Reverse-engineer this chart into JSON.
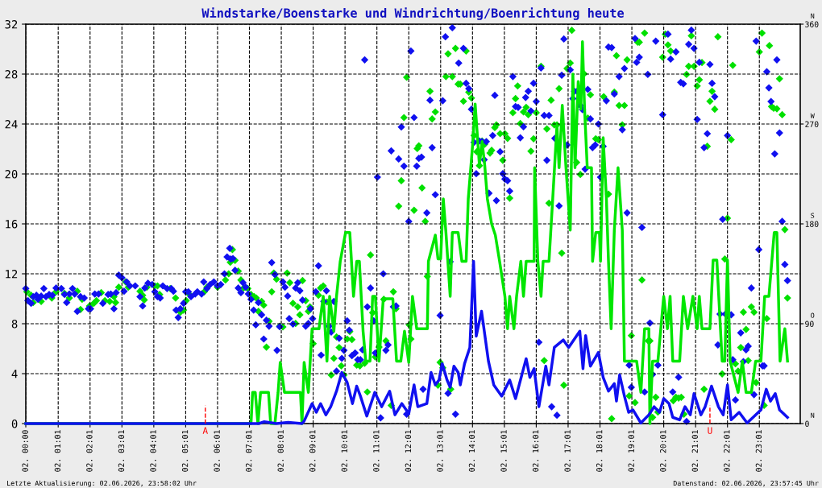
{
  "chart_data": {
    "type": "line",
    "title": "Windstarke/Boenstarke und Windrichtung/Boenrichtung heute",
    "xlim": [
      "2026-06-02T00:00",
      "2026-06-03T00:18"
    ],
    "ylim": [
      0,
      32
    ],
    "y2lim": [
      0,
      360
    ],
    "xticks": [
      {
        "value": "2026-06-02T00:00",
        "label": "02. 00:00"
      },
      {
        "value": "2026-06-02T01:01",
        "label": "02. 01:01"
      },
      {
        "value": "2026-06-02T02:01",
        "label": "02. 02:01"
      },
      {
        "value": "2026-06-02T03:01",
        "label": "02. 03:01"
      },
      {
        "value": "2026-06-02T04:01",
        "label": "02. 04:01"
      },
      {
        "value": "2026-06-02T05:01",
        "label": "02. 05:01"
      },
      {
        "value": "2026-06-02T06:01",
        "label": "02. 06:01"
      },
      {
        "value": "2026-06-02T07:01",
        "label": "02. 07:01"
      },
      {
        "value": "2026-06-02T08:01",
        "label": "02. 08:01"
      },
      {
        "value": "2026-06-02T09:01",
        "label": "02. 09:01"
      },
      {
        "value": "2026-06-02T10:01",
        "label": "02. 10:01"
      },
      {
        "value": "2026-06-02T11:01",
        "label": "02. 11:01"
      },
      {
        "value": "2026-06-02T12:01",
        "label": "02. 12:01"
      },
      {
        "value": "2026-06-02T13:01",
        "label": "02. 13:01"
      },
      {
        "value": "2026-06-02T14:01",
        "label": "02. 14:01"
      },
      {
        "value": "2026-06-02T15:01",
        "label": "02. 15:01"
      },
      {
        "value": "2026-06-02T16:01",
        "label": "02. 16:01"
      },
      {
        "value": "2026-06-02T17:01",
        "label": "02. 17:01"
      },
      {
        "value": "2026-06-02T18:01",
        "label": "02. 18:01"
      },
      {
        "value": "2026-06-02T19:01",
        "label": "02. 19:01"
      },
      {
        "value": "2026-06-02T20:01",
        "label": "02. 20:01"
      },
      {
        "value": "2026-06-02T21:01",
        "label": "02. 21:01"
      },
      {
        "value": "2026-06-02T22:01",
        "label": "02. 22:01"
      },
      {
        "value": "2026-06-02T23:01",
        "label": "02. 23:01"
      }
    ],
    "yticks": [
      0,
      4,
      8,
      12,
      16,
      20,
      24,
      28,
      32
    ],
    "y2ticks": [
      0,
      90,
      180,
      270,
      360
    ],
    "grid": true,
    "line_style": "dashed",
    "ref_lines": [
      {
        "axis": "x",
        "value": "2026-06-02T05:38",
        "label": "A",
        "color": "#ff0000",
        "line_style": "dashed"
      },
      {
        "axis": "x",
        "value": "2026-06-02T21:28",
        "label": "U",
        "color": "#ff0000",
        "line_style": "dashed"
      }
    ],
    "annotations": [
      "Letzte Aktualisierung: 02.06.2026, 23:58:02 Uhr",
      "Datenstand: 02.06.2026, 23:57:45 Uhr",
      "N",
      "W",
      "S",
      "O",
      "N"
    ],
    "series": [
      {
        "type": "scatter",
        "axis": "y2",
        "marker": "diamond",
        "color": "#00e000",
        "x": [
          "2026-06-02T00:02",
          "2026-06-02T00:10",
          "2026-06-02T00:14",
          "2026-06-02T00:29",
          "2026-06-02T00:49",
          "2026-06-02T00:57",
          "2026-06-02T01:13",
          "2026-06-02T01:22",
          "2026-06-02T01:37",
          "2026-06-02T01:43",
          "2026-06-02T01:46",
          "2026-06-02T02:00",
          "2026-06-02T02:08",
          "2026-06-02T02:13",
          "2026-06-02T02:22",
          "2026-06-02T02:29",
          "2026-06-02T02:38",
          "2026-06-02T02:46",
          "2026-06-02T02:49",
          "2026-06-02T02:55",
          "2026-06-02T03:08",
          "2026-06-02T03:13",
          "2026-06-02T03:35",
          "2026-06-02T03:40",
          "2026-06-02T03:43",
          "2026-06-02T03:48",
          "2026-06-02T04:03",
          "2026-06-02T04:08",
          "2026-06-02T04:12",
          "2026-06-02T04:32",
          "2026-06-02T04:42",
          "2026-06-02T04:51",
          "2026-06-02T04:57",
          "2026-06-02T05:02",
          "2026-06-02T05:08",
          "2026-06-02T05:36",
          "2026-06-02T05:41",
          "2026-06-02T06:01",
          "2026-06-02T06:16",
          "2026-06-02T06:22",
          "2026-06-02T06:25",
          "2026-06-02T06:29",
          "2026-06-02T06:34",
          "2026-06-02T06:40",
          "2026-06-02T06:45",
          "2026-06-02T06:50",
          "2026-06-02T06:58",
          "2026-06-02T07:04",
          "2026-06-02T07:10",
          "2026-06-02T07:14",
          "2026-06-02T07:18",
          "2026-06-02T07:24",
          "2026-06-02T07:28",
          "2026-06-02T07:33",
          "2026-06-02T07:38",
          "2026-06-02T07:43",
          "2026-06-02T07:47",
          "2026-06-02T07:52",
          "2026-06-02T07:58",
          "2026-06-02T08:04",
          "2026-06-02T08:12",
          "2026-06-02T08:17",
          "2026-06-02T08:23",
          "2026-06-02T08:28",
          "2026-06-02T08:32",
          "2026-06-02T08:36",
          "2026-06-02T08:41",
          "2026-06-02T08:47",
          "2026-06-02T08:52",
          "2026-06-02T08:55",
          "2026-06-02T09:01",
          "2026-06-02T09:11",
          "2026-06-02T09:15",
          "2026-06-02T09:20",
          "2026-06-02T09:27",
          "2026-06-02T09:35",
          "2026-06-02T09:40",
          "2026-06-02T09:45",
          "2026-06-02T09:50",
          "2026-06-02T09:54",
          "2026-06-02T09:59",
          "2026-06-02T10:05",
          "2026-06-02T10:10",
          "2026-06-02T10:14",
          "2026-06-02T10:23",
          "2026-06-02T10:29",
          "2026-06-02T10:38",
          "2026-06-02T10:43",
          "2026-06-02T10:49",
          "2026-06-02T10:53",
          "2026-06-02T10:58",
          "2026-06-02T11:05",
          "2026-06-02T11:14",
          "2026-06-02T11:18",
          "2026-06-02T11:28",
          "2026-06-02T11:32",
          "2026-06-02T11:37",
          "2026-06-02T11:42",
          "2026-06-02T11:47",
          "2026-06-02T11:52",
          "2026-06-02T11:57",
          "2026-06-02T12:02",
          "2026-06-02T12:05",
          "2026-06-02T12:11",
          "2026-06-02T12:17",
          "2026-06-02T12:20",
          "2026-06-02T12:26",
          "2026-06-02T12:32",
          "2026-06-02T12:36",
          "2026-06-02T12:41",
          "2026-06-02T12:45",
          "2026-06-02T12:51",
          "2026-06-02T12:56",
          "2026-06-02T13:00",
          "2026-06-02T13:05",
          "2026-06-02T13:11",
          "2026-06-02T13:15",
          "2026-06-02T13:20",
          "2026-06-02T13:23",
          "2026-06-02T13:29",
          "2026-06-02T13:34",
          "2026-06-02T13:38",
          "2026-06-02T13:44",
          "2026-06-02T13:49",
          "2026-06-02T13:54",
          "2026-06-02T13:59",
          "2026-06-02T14:04",
          "2026-06-02T14:09",
          "2026-06-02T14:14",
          "2026-06-02T14:19",
          "2026-06-02T14:24",
          "2026-06-02T14:34",
          "2026-06-02T14:37",
          "2026-06-02T14:43",
          "2026-06-02T14:46",
          "2026-06-02T14:53",
          "2026-06-02T14:58",
          "2026-06-02T15:02",
          "2026-06-02T15:07",
          "2026-06-02T15:11",
          "2026-06-02T15:17",
          "2026-06-02T15:22",
          "2026-06-02T15:26",
          "2026-06-02T15:31",
          "2026-06-02T15:37",
          "2026-06-02T15:42",
          "2026-06-02T15:46",
          "2026-06-02T15:51",
          "2026-06-02T15:56",
          "2026-06-02T16:01",
          "2026-06-02T16:10",
          "2026-06-02T16:16",
          "2026-06-02T16:21",
          "2026-06-02T16:25",
          "2026-06-02T16:29",
          "2026-06-02T16:35",
          "2026-06-02T16:40",
          "2026-06-02T16:44",
          "2026-06-02T16:49",
          "2026-06-02T16:53",
          "2026-06-02T16:59",
          "2026-06-02T17:05",
          "2026-06-02T17:08",
          "2026-06-02T17:17",
          "2026-06-02T17:24",
          "2026-06-02T17:31",
          "2026-06-02T17:38",
          "2026-06-02T17:43",
          "2026-06-02T17:53",
          "2026-06-02T17:58",
          "2026-06-02T18:08",
          "2026-06-02T18:17",
          "2026-06-02T18:23",
          "2026-06-02T18:28",
          "2026-06-02T18:32",
          "2026-06-02T18:37",
          "2026-06-02T18:43",
          "2026-06-02T18:47",
          "2026-06-02T18:52",
          "2026-06-02T18:56",
          "2026-06-02T19:00",
          "2026-06-02T19:07",
          "2026-06-02T19:12",
          "2026-06-02T19:15",
          "2026-06-02T19:20",
          "2026-06-02T19:25",
          "2026-06-02T19:32",
          "2026-06-02T19:35",
          "2026-06-02T19:40",
          "2026-06-02T19:46",
          "2026-06-02T19:50",
          "2026-06-02T19:59",
          "2026-06-02T20:04",
          "2026-06-02T20:09",
          "2026-06-02T20:14",
          "2026-06-02T20:19",
          "2026-06-02T20:24",
          "2026-06-02T20:29",
          "2026-06-02T20:34",
          "2026-06-02T20:39",
          "2026-06-02T20:44",
          "2026-06-02T20:48",
          "2026-06-02T20:53",
          "2026-06-02T20:58",
          "2026-06-02T21:04",
          "2026-06-02T21:08",
          "2026-06-02T21:13",
          "2026-06-02T21:17",
          "2026-06-02T21:23",
          "2026-06-02T21:28",
          "2026-06-02T21:32",
          "2026-06-02T21:37",
          "2026-06-02T21:43",
          "2026-06-02T21:51",
          "2026-06-02T21:56",
          "2026-06-02T22:01",
          "2026-06-02T22:08",
          "2026-06-02T22:11",
          "2026-06-02T22:16",
          "2026-06-02T22:21",
          "2026-06-02T22:26",
          "2026-06-02T22:31",
          "2026-06-02T22:36",
          "2026-06-02T22:40",
          "2026-06-02T22:46",
          "2026-06-02T22:51",
          "2026-06-02T22:55",
          "2026-06-02T23:01",
          "2026-06-02T23:06",
          "2026-06-02T23:10",
          "2026-06-02T23:15",
          "2026-06-02T23:20",
          "2026-06-02T23:24",
          "2026-06-02T23:28",
          "2026-06-02T23:34",
          "2026-06-02T23:39",
          "2026-06-02T23:44",
          "2026-06-02T23:49",
          "2026-06-02T23:54"
        ],
        "values": [
          118.8,
          115.6,
          109.1,
          110.1,
          113.2,
          118.8,
          117.3,
          113.2,
          119.3,
          102.8,
          112.0,
          106.0,
          108.4,
          110.8,
          118.0,
          110.8,
          110.1,
          114.4,
          109.1,
          122.9,
          127.7,
          122.9,
          119.3,
          115.6,
          111.5,
          122.9,
          124.1,
          124.1,
          116.4,
          121.7,
          113.2,
          100.4,
          102.3,
          110.8,
          116.4,
          118.8,
          122.9,
          122.9,
          129.4,
          135.0,
          145.4,
          156.8,
          147.1,
          137.4,
          129.4,
          122.2,
          121.7,
          116.4,
          114.4,
          113.2,
          101.1,
          110.1,
          106.7,
          68.9,
          92.2,
          118.8,
          135.7,
          130.1,
          87.8,
          87.1,
          135.7,
          127.0,
          108.4,
          90.2,
          105.2,
          98.0,
          128.9,
          110.8,
          101.1,
          105.2,
          72.1,
          115.6,
          122.2,
          124.1,
          109.6,
          43.8,
          58.8,
          78.1,
          68.5,
          52.0,
          43.8,
          76.2,
          83.0,
          75.7,
          52.7,
          52.0,
          54.4,
          28.5,
          151.9,
          99.9,
          60.0,
          68.9,
          112.0,
          74.5,
          16.4,
          118.8,
          103.5,
          195.9,
          218.9,
          275.8,
          312.1,
          89.0,
          76.2,
          192.3,
          247.9,
          250.4,
          212.4,
          182.2,
          132.6,
          299.5,
          274.6,
          280.9,
          34.6,
          55.2,
          50.3,
          312.8,
          333.3,
          31.0,
          312.8,
          338.2,
          306.0,
          306.0,
          290.5,
          335.8,
          298.7,
          293.4,
          259.6,
          245.0,
          232.5,
          254.7,
          251.8,
          243.8,
          246.3,
          266.8,
          269.2,
          261.3,
          237.3,
          261.3,
          257.1,
          203.2,
          280.2,
          292.9,
          304.3,
          270.4,
          280.9,
          285.0,
          278.4,
          245.5,
          256.7,
          280.2,
          322.0,
          56.8,
          265.6,
          198.6,
          291.5,
          269.2,
          269.2,
          301.9,
          153.6,
          34.6,
          320.0,
          324.9,
          354.4,
          235.4,
          224.5,
          315.2,
          275.3,
          296.3,
          256.7,
          255.9,
          294.6,
          206.8,
          4.4,
          298.7,
          331.6,
          286.7,
          269.2,
          286.7,
          327.8,
          24.9,
          79.3,
          18.9,
          343.7,
          343.7,
          129.4,
          352.0,
          74.5,
          74.5,
          5.6,
          23.7,
          10.4,
          330.2,
          351.0,
          341.3,
          335.8,
          20.6,
          23.7,
          23.0,
          23.7,
          8.5,
          314.7,
          322.0,
          349.5,
          322.0,
          304.3,
          309.9,
          325.4,
          31.0,
          249.9,
          290.5,
          299.5,
          283.3,
          348.6,
          44.8,
          148.3,
          185.1,
          255.9,
          322.9,
          53.9,
          47.2,
          68.5,
          100.4,
          84.9,
          56.8,
          105.2,
          100.4,
          37.0,
          335.0,
          352.0,
          16.4,
          94.6,
          340.6,
          285.7,
          284.2,
          283.7,
          310.8,
          278.4,
          174.9,
          113.2
        ]
      },
      {
        "type": "scatter",
        "axis": "y2",
        "marker": "diamond",
        "color": "#1010f0",
        "x": [
          "2026-06-02T00:00",
          "2026-06-02T00:04",
          "2026-06-02T00:10",
          "2026-06-02T00:14",
          "2026-06-02T00:20",
          "2026-06-02T00:23",
          "2026-06-02T00:29",
          "2026-06-02T00:34",
          "2026-06-02T00:38",
          "2026-06-02T00:44",
          "2026-06-02T00:50",
          "2026-06-02T00:57",
          "2026-06-02T01:07",
          "2026-06-02T01:13",
          "2026-06-02T01:17",
          "2026-06-02T01:22",
          "2026-06-02T01:28",
          "2026-06-02T01:32",
          "2026-06-02T01:37",
          "2026-06-02T01:43",
          "2026-06-02T01:50",
          "2026-06-02T01:58",
          "2026-06-02T02:02",
          "2026-06-02T02:10",
          "2026-06-02T02:17",
          "2026-06-02T02:25",
          "2026-06-02T02:35",
          "2026-06-02T02:40",
          "2026-06-02T02:46",
          "2026-06-02T02:50",
          "2026-06-02T02:55",
          "2026-06-02T03:01",
          "2026-06-02T03:05",
          "2026-06-02T03:10",
          "2026-06-02T03:16",
          "2026-06-02T03:26",
          "2026-06-02T03:35",
          "2026-06-02T03:40",
          "2026-06-02T03:44",
          "2026-06-02T03:50",
          "2026-06-02T03:58",
          "2026-06-02T04:03",
          "2026-06-02T04:08",
          "2026-06-02T04:13",
          "2026-06-02T04:18",
          "2026-06-02T04:26",
          "2026-06-02T04:34",
          "2026-06-02T04:38",
          "2026-06-02T04:43",
          "2026-06-02T04:47",
          "2026-06-02T04:51",
          "2026-06-02T04:57",
          "2026-06-02T05:01",
          "2026-06-02T05:06",
          "2026-06-02T05:11",
          "2026-06-02T05:19",
          "2026-06-02T05:23",
          "2026-06-02T05:31",
          "2026-06-02T05:35",
          "2026-06-02T05:41",
          "2026-06-02T05:47",
          "2026-06-02T05:54",
          "2026-06-02T06:01",
          "2026-06-02T06:07",
          "2026-06-02T06:14",
          "2026-06-02T06:19",
          "2026-06-02T06:24",
          "2026-06-02T06:26",
          "2026-06-02T06:30",
          "2026-06-02T06:34",
          "2026-06-02T06:40",
          "2026-06-02T06:45",
          "2026-06-02T06:49",
          "2026-06-02T06:54",
          "2026-06-02T06:59",
          "2026-06-02T07:04",
          "2026-06-02T07:09",
          "2026-06-02T07:13",
          "2026-06-02T07:18",
          "2026-06-02T07:24",
          "2026-06-02T07:28",
          "2026-06-02T07:33",
          "2026-06-02T07:38",
          "2026-06-02T07:43",
          "2026-06-02T07:49",
          "2026-06-02T07:53",
          "2026-06-02T07:58",
          "2026-06-02T08:04",
          "2026-06-02T08:08",
          "2026-06-02T08:13",
          "2026-06-02T08:16",
          "2026-06-02T08:23",
          "2026-06-02T08:28",
          "2026-06-02T08:32",
          "2026-06-02T08:36",
          "2026-06-02T08:41",
          "2026-06-02T08:47",
          "2026-06-02T08:52",
          "2026-06-02T08:56",
          "2026-06-02T09:00",
          "2026-06-02T09:06",
          "2026-06-02T09:11",
          "2026-06-02T09:16",
          "2026-06-02T09:21",
          "2026-06-02T09:26",
          "2026-06-02T09:31",
          "2026-06-02T09:35",
          "2026-06-02T09:40",
          "2026-06-02T09:45",
          "2026-06-02T09:50",
          "2026-06-02T09:55",
          "2026-06-02T09:59",
          "2026-06-02T10:05",
          "2026-06-02T10:09",
          "2026-06-02T10:14",
          "2026-06-02T10:20",
          "2026-06-02T10:25",
          "2026-06-02T10:30",
          "2026-06-02T10:34",
          "2026-06-02T10:38",
          "2026-06-02T10:43",
          "2026-06-02T10:49",
          "2026-06-02T10:55",
          "2026-06-02T10:58",
          "2026-06-02T11:02",
          "2026-06-02T11:08",
          "2026-06-02T11:13",
          "2026-06-02T11:18",
          "2026-06-02T11:22",
          "2026-06-02T11:28",
          "2026-06-02T11:32",
          "2026-06-02T11:37",
          "2026-06-02T11:42",
          "2026-06-02T11:47",
          "2026-06-02T11:52",
          "2026-06-02T11:57",
          "2026-06-02T12:01",
          "2026-06-02T12:05",
          "2026-06-02T12:11",
          "2026-06-02T12:16",
          "2026-06-02T12:20",
          "2026-06-02T12:25",
          "2026-06-02T12:28",
          "2026-06-02T12:35",
          "2026-06-02T12:41",
          "2026-06-02T12:45",
          "2026-06-02T12:51",
          "2026-06-02T13:00",
          "2026-06-02T13:05",
          "2026-06-02T13:10",
          "2026-06-02T13:15",
          "2026-06-02T13:19",
          "2026-06-02T13:23",
          "2026-06-02T13:29",
          "2026-06-02T13:35",
          "2026-06-02T13:44",
          "2026-06-02T13:49",
          "2026-06-02T13:54",
          "2026-06-02T13:59",
          "2026-06-02T14:04",
          "2026-06-02T14:08",
          "2026-06-02T14:14",
          "2026-06-02T14:19",
          "2026-06-02T14:23",
          "2026-06-02T14:27",
          "2026-06-02T14:32",
          "2026-06-02T14:39",
          "2026-06-02T14:43",
          "2026-06-02T14:46",
          "2026-06-02T14:53",
          "2026-06-02T14:58",
          "2026-06-02T15:02",
          "2026-06-02T15:07",
          "2026-06-02T15:11",
          "2026-06-02T15:17",
          "2026-06-02T15:22",
          "2026-06-02T15:27",
          "2026-06-02T15:31",
          "2026-06-02T15:37",
          "2026-06-02T15:41",
          "2026-06-02T15:46",
          "2026-06-02T15:51",
          "2026-06-02T15:56",
          "2026-06-02T16:01",
          "2026-06-02T16:06",
          "2026-06-02T16:10",
          "2026-06-02T16:16",
          "2026-06-02T16:21",
          "2026-06-02T16:25",
          "2026-06-02T16:30",
          "2026-06-02T16:36",
          "2026-06-02T16:40",
          "2026-06-02T16:44",
          "2026-06-02T16:49",
          "2026-06-02T16:53",
          "2026-06-02T16:59",
          "2026-06-02T17:05",
          "2026-06-02T17:10",
          "2026-06-02T17:13",
          "2026-06-02T17:18",
          "2026-06-02T17:24",
          "2026-06-02T17:28",
          "2026-06-02T17:33",
          "2026-06-02T17:38",
          "2026-06-02T17:43",
          "2026-06-02T17:47",
          "2026-06-02T17:52",
          "2026-06-02T17:58",
          "2026-06-02T18:02",
          "2026-06-02T18:07",
          "2026-06-02T18:13",
          "2026-06-02T18:17",
          "2026-06-02T18:23",
          "2026-06-02T18:28",
          "2026-06-02T18:37",
          "2026-06-02T18:43",
          "2026-06-02T18:47",
          "2026-06-02T18:52",
          "2026-06-02T18:56",
          "2026-06-02T19:00",
          "2026-06-02T19:07",
          "2026-06-02T19:10",
          "2026-06-02T19:15",
          "2026-06-02T19:20",
          "2026-06-02T19:25",
          "2026-06-02T19:31",
          "2026-06-02T19:35",
          "2026-06-02T19:40",
          "2026-06-02T19:46",
          "2026-06-02T19:50",
          "2026-06-02T19:59",
          "2026-06-02T20:09",
          "2026-06-02T20:14",
          "2026-06-02T20:18",
          "2026-06-02T20:24",
          "2026-06-02T20:29",
          "2026-06-02T20:33",
          "2026-06-02T20:38",
          "2026-06-02T20:44",
          "2026-06-02T20:48",
          "2026-06-02T20:53",
          "2026-06-02T20:58",
          "2026-06-02T21:04",
          "2026-06-02T21:08",
          "2026-06-02T21:17",
          "2026-06-02T21:23",
          "2026-06-02T21:28",
          "2026-06-02T21:32",
          "2026-06-02T21:37",
          "2026-06-02T21:43",
          "2026-06-02T21:47",
          "2026-06-02T21:52",
          "2026-06-02T21:57",
          "2026-06-02T22:01",
          "2026-06-02T22:08",
          "2026-06-02T22:11",
          "2026-06-02T22:16",
          "2026-06-02T22:26",
          "2026-06-02T22:31",
          "2026-06-02T22:36",
          "2026-06-02T22:40",
          "2026-06-02T22:46",
          "2026-06-02T22:51",
          "2026-06-02T22:55",
          "2026-06-02T23:00",
          "2026-06-02T23:07",
          "2026-06-02T23:10",
          "2026-06-02T23:15",
          "2026-06-02T23:19",
          "2026-06-02T23:23",
          "2026-06-02T23:30",
          "2026-06-02T23:34",
          "2026-06-02T23:39",
          "2026-06-02T23:44",
          "2026-06-02T23:49",
          "2026-06-02T23:54"
        ],
        "values": [
          121.7,
          110.8,
          108.4,
          114.4,
          115.6,
          112.0,
          114.9,
          121.7,
          114.4,
          116.4,
          115.6,
          122.2,
          121.7,
          116.4,
          109.1,
          116.8,
          121.7,
          116.8,
          101.1,
          114.4,
          113.2,
          103.5,
          103.5,
          116.8,
          116.8,
          108.4,
          116.4,
          116.8,
          103.5,
          118.0,
          133.8,
          131.4,
          119.3,
          127.7,
          124.1,
          124.1,
          114.4,
          106.0,
          122.2,
          126.5,
          125.3,
          118.8,
          114.4,
          113.2,
          124.1,
          121.7,
          121.7,
          119.3,
          102.3,
          95.6,
          103.5,
          108.4,
          118.8,
          118.8,
          114.4,
          116.8,
          118.8,
          116.8,
          127.7,
          121.7,
          125.3,
          127.7,
          124.1,
          125.3,
          135.0,
          150.2,
          158.0,
          148.3,
          148.8,
          138.1,
          122.2,
          118.0,
          127.0,
          122.9,
          116.8,
          112.0,
          102.3,
          89.0,
          109.1,
          98.0,
          76.2,
          93.1,
          87.8,
          145.1,
          134.3,
          66.0,
          87.3,
          127.7,
          122.9,
          114.9,
          94.6,
          89.7,
          122.2,
          127.0,
          119.7,
          111.3,
          87.8,
          90.2,
          103.5,
          94.6,
          118.8,
          142.2,
          61.7,
          110.1,
          119.7,
          87.8,
          82.5,
          110.1,
          47.2,
          76.9,
          58.8,
          66.0,
          92.6,
          84.2,
          61.2,
          63.6,
          57.6,
          57.6,
          66.5,
          327.8,
          105.2,
          122.2,
          92.6,
          63.6,
          222.1,
          5.1,
          135.0,
          66.0,
          70.9,
          245.8,
          105.2,
          106.0,
          238.5,
          267.3,
          232.0,
          8.5,
          182.2,
          335.8,
          275.8,
          232.0,
          239.0,
          240.2,
          31.0,
          189.9,
          291.5,
          248.7,
          206.3,
          97.5,
          291.0,
          348.6,
          27.3,
          145.9,
          356.8,
          8.5,
          324.9,
          338.2,
          306.7,
          301.9,
          283.3,
          253.5,
          225.2,
          254.7,
          254.2,
          237.8,
          254.2,
          207.6,
          259.6,
          295.8,
          201.0,
          245.0,
          225.2,
          220.4,
          218.9,
          209.5,
          312.8,
          285.7,
          285.0,
          257.6,
          267.5,
          293.9,
          299.5,
          281.8,
          306.7,
          290.3,
          73.3,
          320.5,
          277.7,
          237.3,
          277.7,
          15.2,
          257.1,
          7.5,
          196.2,
          314.0,
          346.6,
          251.1,
          318.8,
          292.9,
          299.5,
          299.5,
          286.7,
          283.0,
          229.3,
          301.2,
          274.6,
          248.7,
          251.1,
          270.0,
          222.1,
          249.9,
          291.0,
          339.4,
          338.9,
          297.1,
          312.8,
          264.9,
          320.0,
          189.9,
          52.7,
          32.7,
          347.1,
          325.6,
          330.2,
          176.8,
          28.5,
          314.7,
          90.7,
          44.3,
          344.7,
          52.7,
          278.4,
          351.0,
          328.5,
          28.5,
          335.0,
          41.8,
          307.5,
          306.2,
          1.9,
          341.8,
          354.6,
          338.2,
          274.1,
          325.6,
          248.7,
          261.3,
          323.7,
          306.7,
          294.6,
          70.9,
          98.7,
          184.1,
          98.7,
          259.6,
          98.0,
          57.6,
          21.3,
          81.8,
          55.9,
          66.5,
          69.7,
          122.2,
          26.1,
          344.7,
          156.8,
          52.0,
          52.0,
          317.1,
          302.6,
          290.3,
          243.1,
          327.8,
          262.0,
          182.2,
          143.4,
          128.9
        ]
      },
      {
        "marker": "none",
        "line_style": "solid",
        "color": "#00e600",
        "x": [
          "2026-06-02T00:00",
          "2026-06-02T07:04",
          "2026-06-02T07:07",
          "2026-06-02T07:12",
          "2026-06-02T07:17",
          "2026-06-02T07:22",
          "2026-06-02T07:37",
          "2026-06-02T07:41",
          "2026-06-02T07:49",
          "2026-06-02T07:55",
          "2026-06-02T07:59",
          "2026-06-02T08:07",
          "2026-06-02T08:37",
          "2026-06-02T08:40",
          "2026-06-02T08:44",
          "2026-06-02T08:52",
          "2026-06-02T08:59",
          "2026-06-02T09:12",
          "2026-06-02T09:20",
          "2026-06-02T09:27",
          "2026-06-02T09:32",
          "2026-06-02T09:40",
          "2026-06-02T09:45",
          "2026-06-02T09:52",
          "2026-06-02T10:02",
          "2026-06-02T10:10",
          "2026-06-02T10:17",
          "2026-06-02T10:23",
          "2026-06-02T10:28",
          "2026-06-02T10:35",
          "2026-06-02T10:40",
          "2026-06-02T10:48",
          "2026-06-02T10:53",
          "2026-06-02T10:58",
          "2026-06-02T11:05",
          "2026-06-02T11:13",
          "2026-06-02T11:31",
          "2026-06-02T11:38",
          "2026-06-02T11:46",
          "2026-06-02T11:53",
          "2026-06-02T12:01",
          "2026-06-02T12:08",
          "2026-06-02T12:16",
          "2026-06-02T12:36",
          "2026-06-02T12:38",
          "2026-06-02T12:51",
          "2026-06-02T12:56",
          "2026-06-02T13:01",
          "2026-06-02T13:06",
          "2026-06-02T13:11",
          "2026-06-02T13:19",
          "2026-06-02T13:23",
          "2026-06-02T13:34",
          "2026-06-02T13:41",
          "2026-06-02T13:49",
          "2026-06-02T13:53",
          "2026-06-02T14:01",
          "2026-06-02T14:06",
          "2026-06-02T14:14",
          "2026-06-02T14:19",
          "2026-06-02T14:24",
          "2026-06-02T14:29",
          "2026-06-02T14:37",
          "2026-06-02T14:44",
          "2026-06-02T14:52",
          "2026-06-02T15:02",
          "2026-06-02T15:07",
          "2026-06-02T15:11",
          "2026-06-02T15:19",
          "2026-06-02T15:24",
          "2026-06-02T15:32",
          "2026-06-02T15:37",
          "2026-06-02T15:42",
          "2026-06-02T15:57",
          "2026-06-02T15:58",
          "2026-06-02T16:04",
          "2026-06-02T16:10",
          "2026-06-02T16:14",
          "2026-06-02T16:25",
          "2026-06-02T16:32",
          "2026-06-02T16:40",
          "2026-06-02T16:44",
          "2026-06-02T16:50",
          "2026-06-02T16:57",
          "2026-06-02T17:05",
          "2026-06-02T17:10",
          "2026-06-02T17:14",
          "2026-06-02T17:20",
          "2026-06-02T17:25",
          "2026-06-02T17:28",
          "2026-06-02T17:32",
          "2026-06-02T17:37",
          "2026-06-02T17:45",
          "2026-06-02T17:47",
          "2026-06-02T17:53",
          "2026-06-02T18:00",
          "2026-06-02T18:02",
          "2026-06-02T18:07",
          "2026-06-02T18:13",
          "2026-06-02T18:17",
          "2026-06-02T18:22",
          "2026-06-02T18:28",
          "2026-06-02T18:35",
          "2026-06-02T18:43",
          "2026-06-02T18:47",
          "2026-06-02T18:53",
          "2026-06-02T19:10",
          "2026-06-02T19:18",
          "2026-06-02T19:25",
          "2026-06-02T19:33",
          "2026-06-02T19:35",
          "2026-06-02T19:40",
          "2026-06-02T19:50",
          "2026-06-02T20:01",
          "2026-06-02T20:08",
          "2026-06-02T20:13",
          "2026-06-02T20:18",
          "2026-06-02T20:31",
          "2026-06-02T20:38",
          "2026-06-02T20:46",
          "2026-06-02T20:56",
          "2026-06-02T21:04",
          "2026-06-02T21:08",
          "2026-06-02T21:13",
          "2026-06-02T21:28",
          "2026-06-02T21:34",
          "2026-06-02T21:41",
          "2026-06-02T21:51",
          "2026-06-02T21:56",
          "2026-06-02T22:01",
          "2026-06-02T22:06",
          "2026-06-02T22:21",
          "2026-06-02T22:29",
          "2026-06-02T22:36",
          "2026-06-02T22:46",
          "2026-06-02T22:54",
          "2026-06-02T23:04",
          "2026-06-02T23:11",
          "2026-06-02T23:19",
          "2026-06-02T23:29",
          "2026-06-02T23:34",
          "2026-06-02T23:40",
          "2026-06-02T23:49",
          "2026-06-02T23:54"
        ],
        "values": [
          0,
          0,
          2.5,
          2.5,
          0,
          2.5,
          2.5,
          0,
          0,
          2.5,
          4.9,
          2.5,
          2.5,
          0,
          4.9,
          2.5,
          7.6,
          7.6,
          10.2,
          5.0,
          10.2,
          7.4,
          10.2,
          13.0,
          15.3,
          15.3,
          10.2,
          13.0,
          13.0,
          7.4,
          5.0,
          5.0,
          10.2,
          10.2,
          5.0,
          10.0,
          10.0,
          5.0,
          5.0,
          7.4,
          4.9,
          10.2,
          7.6,
          7.6,
          13.0,
          15.1,
          13.2,
          13.2,
          18.0,
          15.3,
          10.2,
          15.3,
          15.3,
          13.0,
          13.0,
          18.0,
          22.2,
          25.6,
          20.7,
          22.6,
          20.7,
          18.0,
          16.0,
          15.1,
          13.0,
          10.2,
          7.6,
          10.2,
          7.6,
          10.2,
          13.0,
          10.2,
          13.0,
          13.0,
          20.5,
          13.0,
          10.2,
          13.0,
          13.0,
          18.0,
          23.9,
          20.5,
          25.5,
          20.5,
          15.5,
          28.0,
          20.5,
          27.4,
          25.2,
          30.6,
          25.2,
          20.5,
          20.5,
          13.0,
          15.3,
          15.3,
          13.0,
          22.9,
          18.1,
          13.0,
          7.6,
          15.5,
          20.5,
          15.5,
          5.0,
          5.0,
          5.0,
          2.5,
          7.6,
          7.6,
          0,
          5.0,
          5.0,
          10.2,
          7.6,
          10.2,
          5.0,
          5.0,
          10.2,
          7.6,
          10.2,
          7.6,
          10.2,
          7.6,
          7.6,
          13.1,
          13.1,
          5.0,
          5.0,
          13.1,
          5.0,
          2.5,
          5.0,
          2.5,
          2.5,
          5.0,
          5.0,
          10.2,
          10.2,
          15.3,
          15.3,
          5.0,
          7.6,
          5.0
        ]
      },
      {
        "marker": "none",
        "line_style": "solid",
        "color": "#1010f0",
        "x": [
          "2026-06-02T00:00",
          "2026-06-02T07:19",
          "2026-06-02T07:29",
          "2026-06-02T07:52",
          "2026-06-02T08:14",
          "2026-06-02T08:40",
          "2026-06-02T08:44",
          "2026-06-02T08:59",
          "2026-06-02T09:07",
          "2026-06-02T09:15",
          "2026-06-02T09:25",
          "2026-06-02T09:34",
          "2026-06-02T09:45",
          "2026-06-02T09:55",
          "2026-06-02T10:05",
          "2026-06-02T10:15",
          "2026-06-02T10:23",
          "2026-06-02T10:30",
          "2026-06-02T10:42",
          "2026-06-02T10:57",
          "2026-06-02T11:10",
          "2026-06-02T11:25",
          "2026-06-02T11:35",
          "2026-06-02T11:48",
          "2026-06-02T12:01",
          "2026-06-02T12:11",
          "2026-06-02T12:18",
          "2026-06-02T12:35",
          "2026-06-02T12:43",
          "2026-06-02T12:51",
          "2026-06-02T12:58",
          "2026-06-02T13:04",
          "2026-06-02T13:13",
          "2026-06-02T13:19",
          "2026-06-02T13:26",
          "2026-06-02T13:34",
          "2026-06-02T13:38",
          "2026-06-02T13:46",
          "2026-06-02T13:56",
          "2026-06-02T14:03",
          "2026-06-02T14:08",
          "2026-06-02T14:18",
          "2026-06-02T14:31",
          "2026-06-02T14:41",
          "2026-06-02T14:56",
          "2026-06-02T15:11",
          "2026-06-02T15:22",
          "2026-06-02T15:42",
          "2026-06-02T15:49",
          "2026-06-02T15:57",
          "2026-06-02T16:06",
          "2026-06-02T16:19",
          "2026-06-02T16:25",
          "2026-06-02T16:35",
          "2026-06-02T16:52",
          "2026-06-02T17:02",
          "2026-06-02T17:23",
          "2026-06-02T17:29",
          "2026-06-02T17:34",
          "2026-06-02T17:43",
          "2026-06-02T17:58",
          "2026-06-02T18:07",
          "2026-06-02T18:17",
          "2026-06-02T18:28",
          "2026-06-02T18:32",
          "2026-06-02T18:38",
          "2026-06-02T18:47",
          "2026-06-02T18:55",
          "2026-06-02T19:03",
          "2026-06-02T19:18",
          "2026-06-02T19:33",
          "2026-06-02T19:43",
          "2026-06-02T19:53",
          "2026-06-02T20:01",
          "2026-06-02T20:11",
          "2026-06-02T20:18",
          "2026-06-02T20:31",
          "2026-06-02T20:41",
          "2026-06-02T20:51",
          "2026-06-02T20:58",
          "2026-06-02T21:11",
          "2026-06-02T21:19",
          "2026-06-02T21:31",
          "2026-06-02T21:44",
          "2026-06-02T21:53",
          "2026-06-02T22:01",
          "2026-06-02T22:08",
          "2026-06-02T22:23",
          "2026-06-02T22:38",
          "2026-06-02T22:54",
          "2026-06-02T23:04",
          "2026-06-02T23:14",
          "2026-06-02T23:22",
          "2026-06-02T23:31",
          "2026-06-02T23:39",
          "2026-06-02T23:54"
        ],
        "values": [
          0,
          0,
          0.15,
          0,
          0.1,
          0,
          0.2,
          1.6,
          0.9,
          1.6,
          0.7,
          1.35,
          2.6,
          4.1,
          3.3,
          1.6,
          3.0,
          2.2,
          0.6,
          2.5,
          1.35,
          2.6,
          0.7,
          1.6,
          0.8,
          3.1,
          1.35,
          1.6,
          4.1,
          3.1,
          3.5,
          4.8,
          3.5,
          2.9,
          4.6,
          4.1,
          3.1,
          4.8,
          6.1,
          13.0,
          7.0,
          9.0,
          5.0,
          3.1,
          2.2,
          3.5,
          2.0,
          5.2,
          3.7,
          4.4,
          1.35,
          4.6,
          3.1,
          6.1,
          6.7,
          6.1,
          7.4,
          4.4,
          7.05,
          4.6,
          5.7,
          3.7,
          2.6,
          3.2,
          1.8,
          3.9,
          2.2,
          0.9,
          1.1,
          0.05,
          0.7,
          1.35,
          0.9,
          2.0,
          1.6,
          0.5,
          0.3,
          1.35,
          0.7,
          2.4,
          0.7,
          1.35,
          3.0,
          1.35,
          0.7,
          3.1,
          0.3,
          0.9,
          0.05,
          0.7,
          1.1,
          2.75,
          1.8,
          2.4,
          1.1,
          0.5
        ]
      }
    ]
  }
}
